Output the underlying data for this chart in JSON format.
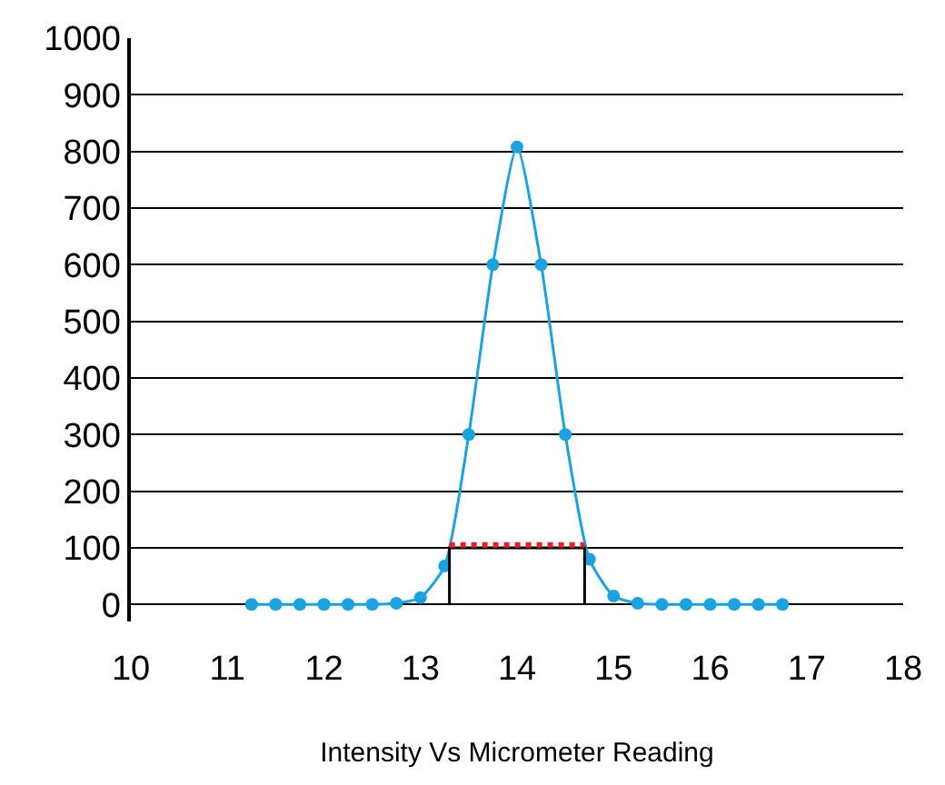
{
  "chart_data": {
    "type": "line",
    "xlabel": "Intensity Vs Micrometer Reading",
    "xlim": [
      10,
      18
    ],
    "xticks": [
      10,
      11,
      12,
      13,
      14,
      15,
      16,
      17,
      18
    ],
    "ylim": [
      -30,
      1000
    ],
    "yticks": [
      0,
      100,
      200,
      300,
      400,
      500,
      600,
      700,
      800,
      900,
      1000
    ],
    "grid": "y",
    "marker": "circle",
    "series": [
      {
        "color": "#1aa3e0",
        "x": [
          11.25,
          11.5,
          11.75,
          12,
          12.25,
          12.5,
          12.75,
          13,
          13.25,
          13.5,
          13.75,
          14,
          14.25,
          14.5,
          14.75,
          15,
          15.25,
          15.5,
          15.75,
          16,
          16.25,
          16.5,
          16.75
        ],
        "values": [
          0,
          0,
          0,
          0,
          0,
          0,
          2,
          12,
          68,
          300,
          600,
          808,
          600,
          300,
          80,
          15,
          2,
          0,
          0,
          0,
          0,
          0,
          0
        ]
      },
      {
        "color": "#000000",
        "marker": "none",
        "x": [
          13.3,
          13.3,
          14.7,
          14.7
        ],
        "values": [
          0,
          100,
          100,
          0
        ]
      },
      {
        "color": "#ee1c24",
        "marker": "none",
        "line_style": "dotted",
        "x": [
          13.3,
          14.7
        ],
        "values": [
          105,
          105
        ]
      }
    ]
  }
}
